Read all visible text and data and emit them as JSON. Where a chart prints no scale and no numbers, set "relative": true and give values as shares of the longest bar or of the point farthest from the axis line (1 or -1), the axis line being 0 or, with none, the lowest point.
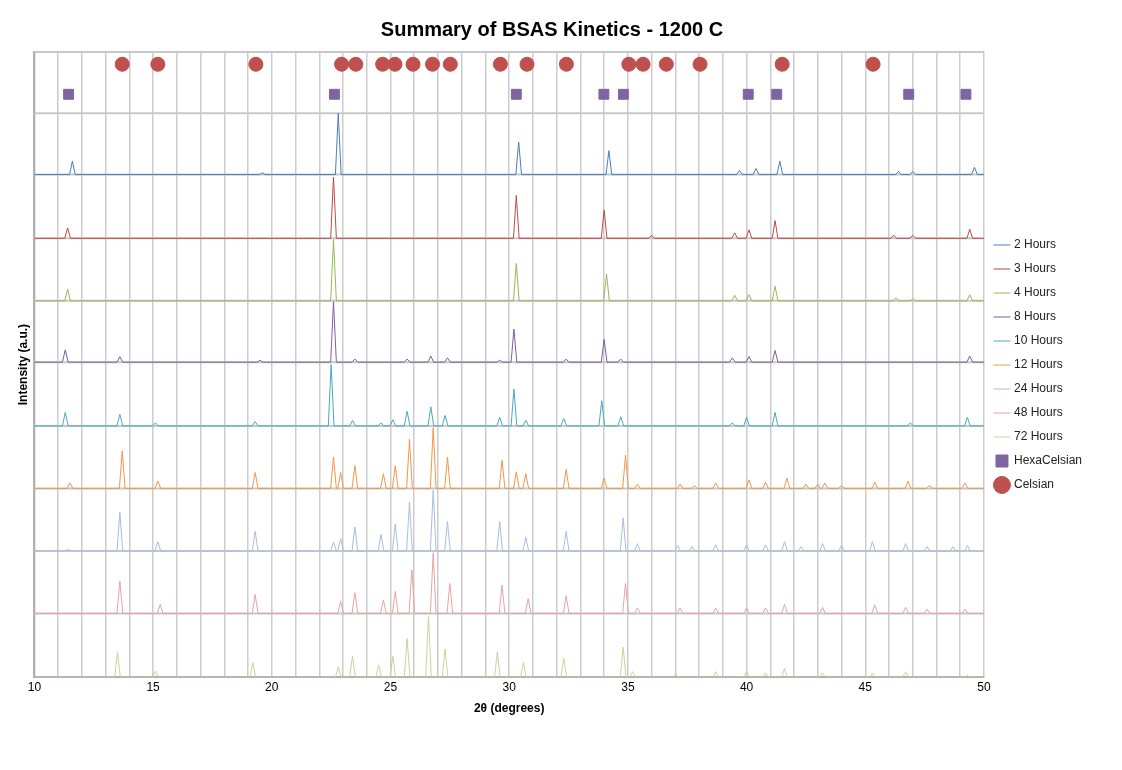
{
  "chart_data": {
    "type": "line",
    "title": "Summary of BSAS Kinetics - 1200 C",
    "xlabel": "2θ (degrees)",
    "ylabel": "Intensity (a.u.)",
    "relative": true,
    "xlim": [
      10,
      50
    ],
    "xticks": [
      10,
      {
        "value": 11,
        "label": null
      },
      {
        "value": 12,
        "label": null
      },
      {
        "value": 13,
        "label": null
      },
      {
        "value": 14,
        "label": null
      },
      15,
      {
        "value": 16,
        "label": null
      },
      {
        "value": 17,
        "label": null
      },
      {
        "value": 18,
        "label": null
      },
      {
        "value": 19,
        "label": null
      },
      20,
      {
        "value": 21,
        "label": null
      },
      {
        "value": 22,
        "label": null
      },
      {
        "value": 23,
        "label": null
      },
      {
        "value": 24,
        "label": null
      },
      25,
      {
        "value": 26,
        "label": null
      },
      {
        "value": 27,
        "label": null
      },
      {
        "value": 28,
        "label": null
      },
      {
        "value": 29,
        "label": null
      },
      30,
      {
        "value": 31,
        "label": null
      },
      {
        "value": 32,
        "label": null
      },
      {
        "value": 33,
        "label": null
      },
      {
        "value": 34,
        "label": null
      },
      35,
      {
        "value": 36,
        "label": null
      },
      {
        "value": 37,
        "label": null
      },
      {
        "value": 38,
        "label": null
      },
      {
        "value": 39,
        "label": null
      },
      40,
      {
        "value": 41,
        "label": null
      },
      {
        "value": 42,
        "label": null
      },
      {
        "value": 43,
        "label": null
      },
      {
        "value": 44,
        "label": null
      },
      45,
      {
        "value": 46,
        "label": null
      },
      {
        "value": 47,
        "label": null
      },
      {
        "value": 48,
        "label": null
      },
      {
        "value": 49,
        "label": null
      },
      50
    ],
    "ref_lines": [
      {
        "axis": "y",
        "value": 0.104,
        "color": "#c8c8c8"
      },
      {
        "axis": "y",
        "value": 0.206,
        "color": "#c8c8c8"
      },
      {
        "axis": "y",
        "value": 0.308,
        "color": "#c8c8c8"
      },
      {
        "axis": "y",
        "value": 0.41,
        "color": "#c8c8c8"
      },
      {
        "axis": "y",
        "value": 0.514,
        "color": "#c8c8c8"
      },
      {
        "axis": "y",
        "value": 0.614,
        "color": "#c8c8c8"
      },
      {
        "axis": "y",
        "value": 0.716,
        "color": "#c8c8c8"
      },
      {
        "axis": "y",
        "value": 0.82,
        "color": "#c8c8c8"
      },
      {
        "axis": "y",
        "value": 0.92,
        "color": "#c8c8c8"
      },
      {
        "axis": "y",
        "value": 1.02,
        "color": "#c8c8c8"
      }
    ],
    "grid": "x",
    "legend": "right",
    "marker": "none",
    "line_style": "solid",
    "series": [
      {
        "name": "2 Hours",
        "color": "#4a7ebb",
        "x": [
          10,
          11.48,
          11.6,
          11.72,
          19.48,
          19.6,
          19.72,
          22.68,
          22.8,
          22.92,
          30.28,
          30.4,
          30.52,
          34.08,
          34.2,
          34.32,
          39.58,
          39.7,
          39.82,
          40.28,
          40.4,
          40.52,
          41.28,
          41.4,
          41.52,
          46.28,
          46.4,
          46.52,
          46.88,
          47,
          47.12,
          49.48,
          49.6,
          49.72,
          50
        ],
        "values": [
          0.82,
          0.82,
          0.842,
          0.82,
          0.82,
          0.823,
          0.82,
          0.82,
          0.92,
          0.82,
          0.82,
          0.873,
          0.82,
          0.82,
          0.859,
          0.82,
          0.82,
          0.827,
          0.82,
          0.82,
          0.83,
          0.82,
          0.82,
          0.842,
          0.82,
          0.82,
          0.825,
          0.82,
          0.82,
          0.825,
          0.82,
          0.82,
          0.832,
          0.82,
          0.82
        ]
      },
      {
        "name": "3 Hours",
        "color": "#be4b48",
        "x": [
          10,
          11.28,
          11.4,
          11.52,
          22.48,
          22.6,
          22.72,
          30.18,
          30.3,
          30.42,
          33.88,
          34,
          34.12,
          35.88,
          36,
          36.12,
          39.38,
          39.5,
          39.62,
          39.98,
          40.1,
          40.22,
          41.08,
          41.2,
          41.32,
          46.08,
          46.2,
          46.32,
          46.88,
          47,
          47.12,
          49.28,
          49.4,
          49.52,
          50
        ],
        "values": [
          0.716,
          0.716,
          0.733,
          0.716,
          0.716,
          0.816,
          0.716,
          0.716,
          0.786,
          0.716,
          0.716,
          0.762,
          0.716,
          0.716,
          0.721,
          0.716,
          0.716,
          0.725,
          0.716,
          0.716,
          0.73,
          0.716,
          0.716,
          0.745,
          0.716,
          0.716,
          0.721,
          0.716,
          0.716,
          0.721,
          0.716,
          0.716,
          0.731,
          0.716,
          0.716
        ]
      },
      {
        "name": "4 Hours",
        "color": "#98b954",
        "x": [
          10,
          11.28,
          11.4,
          11.52,
          22.48,
          22.6,
          22.72,
          30.18,
          30.3,
          30.42,
          33.98,
          34.1,
          34.22,
          39.38,
          39.5,
          39.62,
          39.98,
          40.1,
          40.22,
          41.08,
          41.2,
          41.32,
          46.18,
          46.3,
          46.42,
          46.88,
          47,
          47.12,
          49.28,
          49.4,
          49.52,
          50
        ],
        "values": [
          0.614,
          0.614,
          0.633,
          0.614,
          0.614,
          0.714,
          0.614,
          0.614,
          0.675,
          0.614,
          0.614,
          0.658,
          0.614,
          0.614,
          0.623,
          0.614,
          0.614,
          0.624,
          0.614,
          0.614,
          0.638,
          0.614,
          0.614,
          0.619,
          0.614,
          0.614,
          0.617,
          0.614,
          0.614,
          0.624,
          0.614,
          0.614
        ]
      },
      {
        "name": "8 Hours",
        "color": "#7d60a0",
        "x": [
          10,
          11.18,
          11.3,
          11.42,
          13.48,
          13.6,
          13.72,
          19.38,
          19.5,
          19.62,
          22.48,
          22.6,
          22.72,
          23.38,
          23.5,
          23.62,
          25.58,
          25.7,
          25.82,
          26.58,
          26.7,
          26.82,
          27.28,
          27.4,
          27.52,
          29.48,
          29.6,
          29.72,
          30.08,
          30.2,
          30.32,
          32.28,
          32.4,
          32.52,
          33.88,
          34,
          34.12,
          34.58,
          34.7,
          34.82,
          39.28,
          39.4,
          39.52,
          39.98,
          40.1,
          40.22,
          41.08,
          41.2,
          41.32,
          49.28,
          49.4,
          49.52,
          50
        ],
        "values": [
          0.514,
          0.514,
          0.534,
          0.514,
          0.514,
          0.523,
          0.514,
          0.514,
          0.517,
          0.514,
          0.514,
          0.613,
          0.514,
          0.514,
          0.519,
          0.514,
          0.514,
          0.519,
          0.514,
          0.514,
          0.524,
          0.514,
          0.514,
          0.521,
          0.514,
          0.514,
          0.517,
          0.514,
          0.514,
          0.568,
          0.514,
          0.514,
          0.519,
          0.514,
          0.514,
          0.551,
          0.514,
          0.514,
          0.519,
          0.514,
          0.514,
          0.521,
          0.514,
          0.514,
          0.523,
          0.514,
          0.514,
          0.533,
          0.514,
          0.514,
          0.524,
          0.514,
          0.514
        ]
      },
      {
        "name": "10 Hours",
        "color": "#46aac5",
        "x": [
          10,
          11.18,
          11.3,
          11.42,
          13.48,
          13.6,
          13.72,
          14.98,
          15.1,
          15.22,
          19.18,
          19.3,
          19.42,
          22.38,
          22.5,
          22.62,
          23.28,
          23.4,
          23.52,
          24.48,
          24.6,
          24.72,
          24.98,
          25.1,
          25.22,
          25.58,
          25.7,
          25.82,
          26.58,
          26.7,
          26.82,
          27.18,
          27.3,
          27.42,
          29.48,
          29.6,
          29.72,
          30.08,
          30.2,
          30.32,
          30.58,
          30.7,
          30.82,
          32.18,
          32.3,
          32.42,
          33.78,
          33.9,
          34.02,
          34.58,
          34.7,
          34.82,
          39.28,
          39.4,
          39.52,
          39.88,
          40,
          40.12,
          41.08,
          41.2,
          41.32,
          46.78,
          46.9,
          47.02,
          49.18,
          49.3,
          49.42,
          50
        ],
        "values": [
          0.41,
          0.41,
          0.432,
          0.41,
          0.41,
          0.429,
          0.41,
          0.41,
          0.415,
          0.41,
          0.41,
          0.417,
          0.41,
          0.41,
          0.51,
          0.41,
          0.41,
          0.419,
          0.41,
          0.41,
          0.415,
          0.41,
          0.41,
          0.42,
          0.41,
          0.41,
          0.434,
          0.41,
          0.41,
          0.441,
          0.41,
          0.41,
          0.427,
          0.41,
          0.41,
          0.424,
          0.41,
          0.41,
          0.47,
          0.41,
          0.41,
          0.419,
          0.41,
          0.41,
          0.422,
          0.41,
          0.41,
          0.451,
          0.41,
          0.41,
          0.425,
          0.41,
          0.41,
          0.415,
          0.41,
          0.41,
          0.424,
          0.41,
          0.41,
          0.432,
          0.41,
          0.41,
          0.415,
          0.41,
          0.41,
          0.424,
          0.41,
          0.41
        ]
      },
      {
        "name": "12 Hours",
        "color": "#f79646",
        "x": [
          10,
          11.38,
          11.5,
          11.62,
          13.58,
          13.7,
          13.82,
          15.08,
          15.2,
          15.32,
          19.18,
          19.3,
          19.42,
          22.48,
          22.6,
          22.72,
          22.78,
          22.9,
          23.02,
          23.38,
          23.5,
          23.62,
          24.58,
          24.7,
          24.82,
          25.08,
          25.2,
          25.32,
          25.68,
          25.8,
          25.92,
          26.68,
          26.8,
          26.92,
          27.28,
          27.4,
          27.52,
          29.58,
          29.7,
          29.82,
          30.18,
          30.3,
          30.42,
          30.58,
          30.7,
          30.82,
          32.28,
          32.4,
          32.52,
          33.88,
          34,
          34.12,
          34.78,
          34.9,
          35.02,
          35.28,
          35.4,
          35.52,
          37.08,
          37.2,
          37.32,
          37.68,
          37.8,
          37.92,
          38.58,
          38.7,
          38.82,
          39.98,
          40.1,
          40.22,
          40.68,
          40.8,
          40.92,
          41.58,
          41.7,
          41.82,
          42.38,
          42.5,
          42.62,
          42.88,
          43,
          43.12,
          43.18,
          43.3,
          43.42,
          43.88,
          44,
          44.12,
          45.28,
          45.4,
          45.52,
          46.68,
          46.8,
          46.92,
          47.58,
          47.7,
          47.82,
          49.08,
          49.2,
          49.32,
          50
        ],
        "values": [
          0.308,
          0.308,
          0.317,
          0.308,
          0.308,
          0.369,
          0.308,
          0.308,
          0.32,
          0.308,
          0.308,
          0.334,
          0.308,
          0.308,
          0.359,
          0.308,
          0.308,
          0.334,
          0.308,
          0.308,
          0.345,
          0.308,
          0.308,
          0.332,
          0.308,
          0.308,
          0.345,
          0.308,
          0.308,
          0.388,
          0.308,
          0.308,
          0.407,
          0.308,
          0.308,
          0.359,
          0.308,
          0.308,
          0.354,
          0.308,
          0.308,
          0.335,
          0.308,
          0.308,
          0.332,
          0.308,
          0.308,
          0.339,
          0.308,
          0.308,
          0.325,
          0.308,
          0.308,
          0.362,
          0.308,
          0.308,
          0.315,
          0.308,
          0.308,
          0.315,
          0.308,
          0.308,
          0.313,
          0.308,
          0.308,
          0.317,
          0.308,
          0.308,
          0.322,
          0.308,
          0.308,
          0.318,
          0.308,
          0.308,
          0.325,
          0.308,
          0.308,
          0.315,
          0.308,
          0.308,
          0.315,
          0.308,
          0.308,
          0.317,
          0.308,
          0.308,
          0.313,
          0.308,
          0.308,
          0.318,
          0.308,
          0.308,
          0.32,
          0.308,
          0.308,
          0.313,
          0.308,
          0.308,
          0.317,
          0.308,
          0.308
        ]
      },
      {
        "name": "24 Hours",
        "color": "#a8bde0",
        "x": [
          10,
          11.28,
          11.4,
          11.52,
          13.48,
          13.6,
          13.72,
          15.08,
          15.2,
          15.32,
          19.18,
          19.3,
          19.42,
          22.48,
          22.6,
          22.72,
          22.78,
          22.9,
          23.02,
          23.38,
          23.5,
          23.62,
          24.48,
          24.6,
          24.72,
          25.08,
          25.2,
          25.32,
          25.68,
          25.8,
          25.92,
          26.68,
          26.8,
          26.92,
          27.28,
          27.4,
          27.52,
          29.48,
          29.6,
          29.72,
          30.58,
          30.7,
          30.82,
          32.28,
          32.4,
          32.52,
          34.68,
          34.8,
          34.92,
          35.28,
          35.4,
          35.52,
          36.98,
          37.1,
          37.22,
          37.58,
          37.7,
          37.82,
          38.58,
          38.7,
          38.82,
          39.88,
          40,
          40.12,
          40.68,
          40.8,
          40.92,
          41.48,
          41.6,
          41.72,
          42.18,
          42.3,
          42.42,
          43.08,
          43.2,
          43.32,
          43.88,
          44,
          44.12,
          45.18,
          45.3,
          45.42,
          46.58,
          46.7,
          46.82,
          47.48,
          47.6,
          47.72,
          48.58,
          48.7,
          48.82,
          49.18,
          49.3,
          49.42,
          50
        ],
        "values": [
          0.206,
          0.206,
          0.209,
          0.206,
          0.206,
          0.269,
          0.206,
          0.206,
          0.221,
          0.206,
          0.206,
          0.238,
          0.206,
          0.206,
          0.22,
          0.206,
          0.206,
          0.226,
          0.206,
          0.206,
          0.245,
          0.206,
          0.206,
          0.233,
          0.206,
          0.206,
          0.25,
          0.206,
          0.206,
          0.286,
          0.206,
          0.206,
          0.305,
          0.206,
          0.206,
          0.254,
          0.206,
          0.206,
          0.254,
          0.206,
          0.206,
          0.228,
          0.206,
          0.206,
          0.238,
          0.206,
          0.206,
          0.26,
          0.206,
          0.206,
          0.218,
          0.206,
          0.206,
          0.215,
          0.206,
          0.206,
          0.213,
          0.206,
          0.206,
          0.216,
          0.206,
          0.206,
          0.216,
          0.206,
          0.206,
          0.216,
          0.206,
          0.206,
          0.221,
          0.206,
          0.206,
          0.213,
          0.206,
          0.206,
          0.218,
          0.206,
          0.206,
          0.215,
          0.206,
          0.206,
          0.221,
          0.206,
          0.206,
          0.218,
          0.206,
          0.206,
          0.213,
          0.206,
          0.206,
          0.213,
          0.206,
          0.206,
          0.215,
          0.206,
          0.206
        ]
      },
      {
        "name": "48 Hours",
        "color": "#e6a4a3",
        "x": [
          10,
          13.48,
          13.6,
          13.72,
          15.18,
          15.3,
          15.42,
          19.18,
          19.3,
          19.42,
          22.78,
          22.9,
          23.02,
          23.38,
          23.5,
          23.62,
          24.58,
          24.7,
          24.82,
          25.08,
          25.2,
          25.32,
          25.78,
          25.9,
          26.02,
          26.68,
          26.8,
          26.92,
          27.38,
          27.5,
          27.62,
          29.58,
          29.7,
          29.82,
          30.68,
          30.8,
          30.92,
          32.28,
          32.4,
          32.52,
          34.78,
          34.9,
          35.02,
          35.28,
          35.4,
          35.52,
          37.08,
          37.2,
          37.32,
          38.58,
          38.7,
          38.82,
          39.88,
          40,
          40.12,
          40.68,
          40.8,
          40.92,
          41.48,
          41.6,
          41.72,
          43.08,
          43.2,
          43.32,
          45.28,
          45.4,
          45.52,
          46.58,
          46.7,
          46.82,
          47.48,
          47.6,
          47.72,
          49.08,
          49.2,
          49.32,
          50
        ],
        "values": [
          0.104,
          0.104,
          0.157,
          0.104,
          0.104,
          0.119,
          0.104,
          0.104,
          0.135,
          0.104,
          0.104,
          0.124,
          0.104,
          0.104,
          0.138,
          0.104,
          0.104,
          0.126,
          0.104,
          0.104,
          0.14,
          0.104,
          0.104,
          0.175,
          0.104,
          0.104,
          0.203,
          0.104,
          0.104,
          0.153,
          0.104,
          0.104,
          0.15,
          0.104,
          0.104,
          0.128,
          0.104,
          0.104,
          0.133,
          0.104,
          0.104,
          0.153,
          0.104,
          0.104,
          0.113,
          0.104,
          0.104,
          0.113,
          0.104,
          0.104,
          0.113,
          0.104,
          0.104,
          0.113,
          0.104,
          0.104,
          0.113,
          0.104,
          0.104,
          0.119,
          0.104,
          0.104,
          0.114,
          0.104,
          0.104,
          0.118,
          0.104,
          0.104,
          0.114,
          0.104,
          0.104,
          0.111,
          0.104,
          0.104,
          0.111,
          0.104,
          0.104
        ]
      },
      {
        "name": "72 Hours",
        "color": "#c3d69b",
        "x": [
          10,
          13.38,
          13.5,
          13.62,
          14.98,
          15.1,
          15.22,
          19.08,
          19.2,
          19.32,
          22.68,
          22.8,
          22.92,
          23.28,
          23.4,
          23.52,
          24.38,
          24.5,
          24.62,
          24.98,
          25.1,
          25.22,
          25.58,
          25.7,
          25.82,
          26.48,
          26.6,
          26.72,
          27.18,
          27.3,
          27.42,
          29.38,
          29.5,
          29.62,
          30.48,
          30.6,
          30.72,
          32.18,
          32.3,
          32.42,
          34.68,
          34.8,
          34.92,
          35.08,
          35.2,
          35.32,
          36.88,
          37,
          37.12,
          38.58,
          38.7,
          38.82,
          39.88,
          40,
          40.12,
          40.68,
          40.8,
          40.92,
          41.48,
          41.6,
          41.72,
          43.08,
          43.2,
          43.32,
          45.18,
          45.3,
          45.42,
          46.58,
          46.7,
          46.82,
          49.18,
          49.3,
          49.42,
          50
        ],
        "values": [
          0,
          0,
          0.041,
          0,
          0,
          0.01,
          0,
          0,
          0.024,
          0,
          0,
          0.017,
          0,
          0,
          0.034,
          0,
          0,
          0.02,
          0,
          0,
          0.034,
          0,
          0,
          0.063,
          0,
          0,
          0.099,
          0,
          0,
          0.046,
          0,
          0,
          0.041,
          0,
          0,
          0.024,
          0,
          0,
          0.031,
          0,
          0,
          0.049,
          0,
          0,
          0.009,
          0,
          0,
          0.005,
          0,
          0,
          0.009,
          0,
          0,
          0.009,
          0,
          0,
          0.007,
          0,
          0,
          0.014,
          0,
          0,
          0.007,
          0,
          0,
          0.007,
          0,
          0,
          0.009,
          0,
          0,
          0.003,
          0,
          0
        ]
      },
      {
        "name": "HexaCelsian",
        "type": "scatter",
        "marker": "square",
        "color": "#8064a2",
        "x": [
          11.44,
          22.64,
          30.3,
          33.99,
          34.81,
          40.07,
          41.27,
          46.83,
          49.24
        ],
        "values": [
          0.951,
          0.951,
          0.951,
          0.951,
          0.951,
          0.951,
          0.951,
          0.951,
          0.951
        ]
      },
      {
        "name": "Celsian",
        "type": "scatter",
        "marker": "circle",
        "color": "#c0504d",
        "x": [
          13.7,
          15.2,
          19.33,
          22.94,
          23.54,
          24.67,
          25.19,
          25.95,
          26.77,
          27.52,
          29.63,
          30.75,
          32.41,
          35.04,
          35.64,
          36.62,
          38.04,
          41.5,
          45.33
        ],
        "values": [
          1,
          1,
          1,
          1,
          1,
          1,
          1,
          1,
          1,
          1,
          1,
          1,
          1,
          1,
          1,
          1,
          1,
          1,
          1
        ]
      }
    ]
  }
}
